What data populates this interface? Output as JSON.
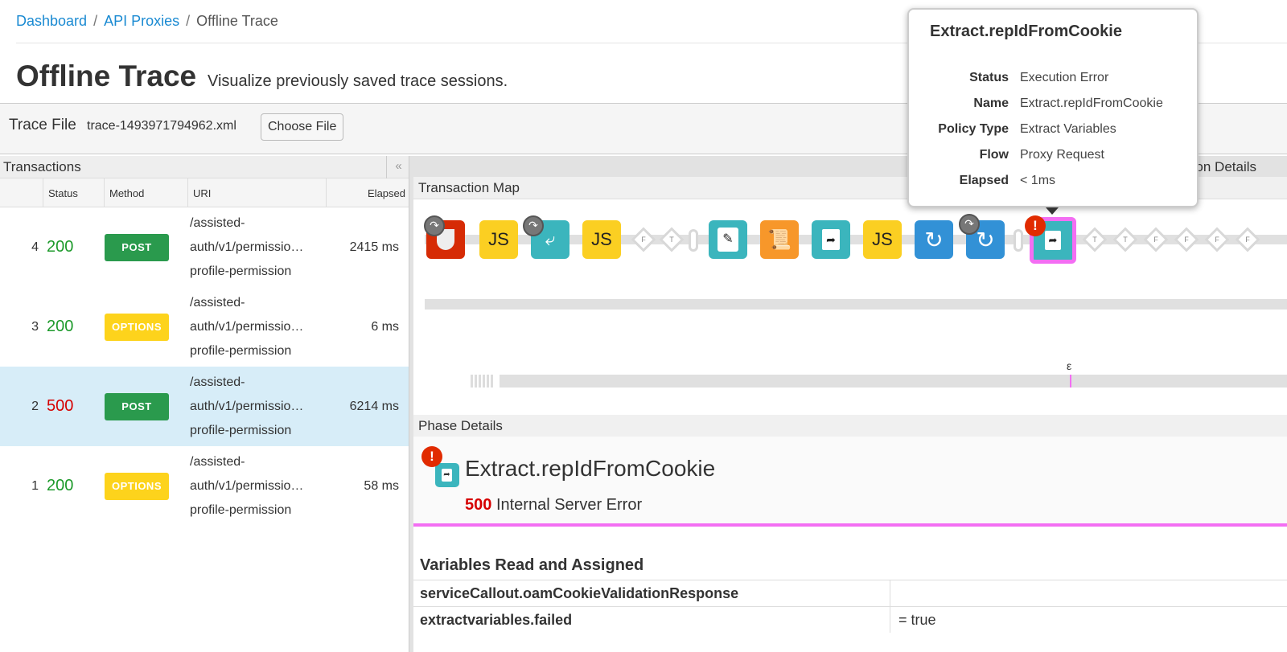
{
  "breadcrumb": [
    {
      "label": "Dashboard"
    },
    {
      "label": "API Proxies"
    },
    {
      "label": "Offline Trace"
    }
  ],
  "header": {
    "title": "Offline Trace",
    "subtitle": "Visualize previously saved trace sessions."
  },
  "trace_file": {
    "label": "Trace File",
    "file_name": "trace-1493971794962.xml",
    "choose_label": "Choose File"
  },
  "transactions": {
    "title": "Transactions",
    "collapse_icon": "«",
    "columns": [
      "",
      "Status",
      "Method",
      "URI",
      "Elapsed"
    ],
    "rows": [
      {
        "num": "4",
        "status": "200",
        "method": "POST",
        "uri": [
          "/assisted-",
          "auth/v1/permissio…",
          "profile-permission"
        ],
        "elapsed": "2415 ms"
      },
      {
        "num": "3",
        "status": "200",
        "method": "OPTIONS",
        "uri": [
          "/assisted-",
          "auth/v1/permissio…",
          "profile-permission"
        ],
        "elapsed": "6 ms"
      },
      {
        "num": "2",
        "status": "500",
        "method": "POST",
        "uri": [
          "/assisted-",
          "auth/v1/permissio…",
          "profile-permission"
        ],
        "elapsed": "6214 ms",
        "selected": true
      },
      {
        "num": "1",
        "status": "200",
        "method": "OPTIONS",
        "uri": [
          "/assisted-",
          "auth/v1/permissio…",
          "profile-permission"
        ],
        "elapsed": "58 ms"
      }
    ]
  },
  "right": {
    "details_tab": "Transaction Details",
    "map_title": "Transaction Map",
    "epsilon": "ε",
    "phase_title": "Phase Details"
  },
  "map": {
    "diamonds_a": [
      "F",
      "T"
    ],
    "js": "JS",
    "diamonds_b": [
      "T",
      "T",
      "F",
      "F",
      "F",
      "F"
    ]
  },
  "tooltip": {
    "title": "Extract.repIdFromCookie",
    "fields": [
      {
        "k": "Status",
        "v": "Execution Error"
      },
      {
        "k": "Name",
        "v": "Extract.repIdFromCookie"
      },
      {
        "k": "Policy Type",
        "v": "Extract Variables"
      },
      {
        "k": "Flow",
        "v": "Proxy Request"
      },
      {
        "k": "Elapsed",
        "v": "< 1ms"
      }
    ]
  },
  "phase": {
    "name": "Extract.repIdFromCookie",
    "code": "500",
    "message": "Internal Server Error"
  },
  "variables": {
    "title": "Variables Read and Assigned",
    "rows": [
      {
        "k": "serviceCallout.oamCookieValidationResponse",
        "v": ""
      },
      {
        "k": "extractvariables.failed",
        "v": "= true"
      }
    ]
  },
  "colors": {
    "link": "#1a8ad2",
    "ok": "#1d9a2b",
    "error": "#d60000",
    "post": "#2a9a4d",
    "options": "#fdd31c",
    "selected_border": "#f36ef3",
    "teal": "#3bb5bd",
    "blue": "#3291d6",
    "orange": "#f7972a",
    "red": "#d62b05",
    "yellow": "#fbcf22"
  }
}
